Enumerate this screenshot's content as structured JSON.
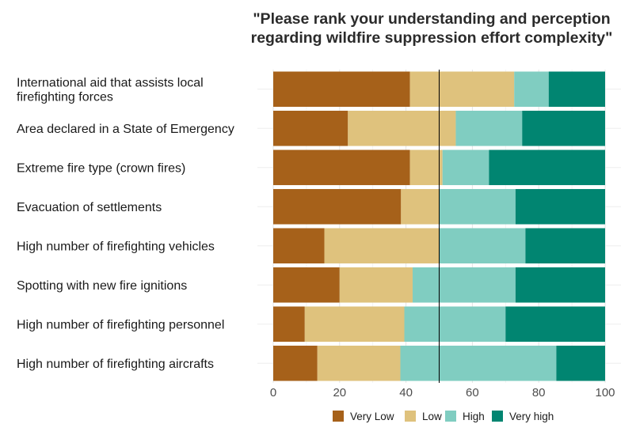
{
  "chart_data": {
    "type": "bar",
    "orientation": "horizontal",
    "stacked": true,
    "title": "\"Please rank your understanding and perception regarding wildfire suppression effort complexity\"",
    "title_lines": [
      "\"Please rank your understanding and perception",
      "regarding wildfire suppression effort complexity\""
    ],
    "xlabel": "",
    "ylabel": "",
    "xlim": [
      0,
      100
    ],
    "x_ticks": [
      "0",
      "20",
      "40",
      "60",
      "80",
      "100"
    ],
    "x_tick_values": [
      0,
      20,
      40,
      60,
      80,
      100
    ],
    "reference_line": 50,
    "grid": true,
    "legend_position": "bottom",
    "categories": [
      [
        "International aid that assists local",
        "firefighting forces"
      ],
      [
        "Area declared in a State of Emergency"
      ],
      [
        "Extreme fire type (crown fires)"
      ],
      [
        "Evacuation of settlements"
      ],
      [
        "High number of firefighting vehicles"
      ],
      [
        "Spotting with new fire ignitions"
      ],
      [
        "High number of firefighting personnel"
      ],
      [
        "High number of firefighting aircrafts"
      ]
    ],
    "series": [
      {
        "name": "Very Low",
        "color": "#a6611a",
        "values": [
          41.2,
          22.5,
          41.2,
          38.5,
          15.4,
          20.0,
          9.5,
          13.3
        ]
      },
      {
        "name": "Low",
        "color": "#dfc27d",
        "values": [
          31.4,
          32.5,
          9.8,
          11.5,
          34.6,
          22.0,
          30.0,
          25.0
        ]
      },
      {
        "name": "High",
        "color": "#80cdc1",
        "values": [
          10.4,
          20.0,
          14.0,
          23.0,
          26.0,
          31.0,
          30.5,
          47.0
        ]
      },
      {
        "name": "Very high",
        "color": "#018571",
        "values": [
          17.0,
          25.0,
          35.0,
          27.0,
          24.0,
          27.0,
          30.0,
          14.7
        ]
      }
    ]
  }
}
